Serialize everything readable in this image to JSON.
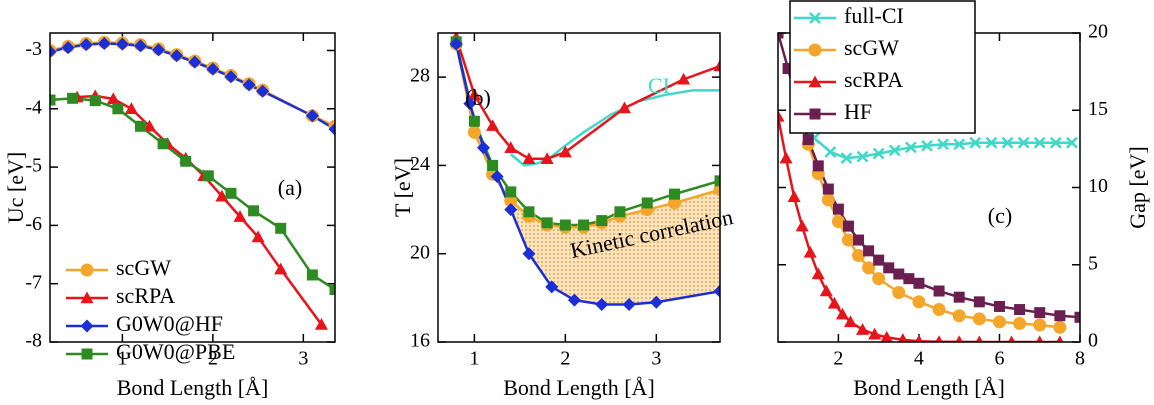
{
  "chart_data": [
    {
      "type": "line",
      "panel_label": "(a)",
      "xlabel": "Bond Length [Å]",
      "ylabel": "Uc [eV]",
      "xlim": [
        0.2,
        3.35
      ],
      "xticks": [
        1,
        2,
        3
      ],
      "ylim": [
        -8,
        -2.7
      ],
      "yticks": [
        -8,
        -7,
        -6,
        -5,
        -4,
        -3
      ],
      "legend": "lower left",
      "legend_frame": false,
      "series": [
        {
          "name": "scGW",
          "color": "#f4a62a",
          "marker": "circle",
          "x": [
            0.2,
            0.4,
            0.6,
            0.8,
            1.0,
            1.2,
            1.4,
            1.6,
            1.8,
            2.0,
            2.2,
            2.4,
            2.55,
            3.1,
            3.35
          ],
          "values": [
            -3.0,
            -2.93,
            -2.88,
            -2.86,
            -2.87,
            -2.9,
            -2.97,
            -3.07,
            -3.18,
            -3.3,
            -3.43,
            -3.57,
            -3.68,
            -4.12,
            -4.3
          ]
        },
        {
          "name": "scRPA",
          "color": "#e8141b",
          "marker": "triangle",
          "x": [
            0.5,
            0.7,
            0.9,
            1.1,
            1.3,
            1.5,
            1.7,
            1.9,
            2.1,
            2.3,
            2.5,
            2.75,
            3.2
          ],
          "values": [
            -3.8,
            -3.78,
            -3.83,
            -4.0,
            -4.3,
            -4.6,
            -4.85,
            -5.15,
            -5.5,
            -5.85,
            -6.2,
            -6.75,
            -7.7
          ]
        },
        {
          "name": "G0W0@HF",
          "color": "#1a2fd8",
          "marker": "diamond",
          "x": [
            0.2,
            0.4,
            0.6,
            0.8,
            1.0,
            1.2,
            1.4,
            1.6,
            1.8,
            2.0,
            2.2,
            2.4,
            2.55,
            3.1,
            3.35
          ],
          "values": [
            -3.02,
            -2.95,
            -2.9,
            -2.88,
            -2.89,
            -2.92,
            -2.99,
            -3.09,
            -3.2,
            -3.32,
            -3.45,
            -3.59,
            -3.7,
            -4.12,
            -4.35
          ]
        },
        {
          "name": "G0W0@PBE",
          "color": "#2e8b22",
          "marker": "square",
          "x": [
            0.2,
            0.45,
            0.7,
            0.95,
            1.2,
            1.45,
            1.7,
            1.95,
            2.2,
            2.45,
            2.75,
            3.1,
            3.35
          ],
          "values": [
            -3.85,
            -3.82,
            -3.86,
            -4.0,
            -4.3,
            -4.6,
            -4.9,
            -5.15,
            -5.45,
            -5.75,
            -6.05,
            -6.85,
            -7.1
          ]
        }
      ]
    },
    {
      "type": "line",
      "panel_label": "(b)",
      "xlabel": "Bond Length [Å]",
      "ylabel": "T [eV]",
      "xlim": [
        0.6,
        3.7
      ],
      "xticks": [
        1,
        2,
        3
      ],
      "ylim": [
        16,
        30
      ],
      "yticks": [
        16,
        20,
        24,
        28
      ],
      "shade_between": [
        2,
        4
      ],
      "shade_color": "#f4b860",
      "shade_label": "Kinetic correlation",
      "series": [
        {
          "name": "CI",
          "color": "#40d8c8",
          "marker": "none",
          "x": [
            1.4,
            1.55,
            1.7,
            1.85,
            2.0,
            2.2,
            2.5,
            2.8,
            3.1,
            3.4,
            3.7
          ],
          "values": [
            24.5,
            24.0,
            24.1,
            24.4,
            24.9,
            25.5,
            26.3,
            26.9,
            27.2,
            27.4,
            27.4
          ]
        },
        {
          "color": "#e8141b",
          "marker": "triangle",
          "x": [
            0.8,
            1.0,
            1.2,
            1.4,
            1.6,
            1.8,
            2.0,
            2.65,
            3.3,
            3.7
          ],
          "values": [
            29.8,
            27.2,
            25.8,
            24.8,
            24.3,
            24.3,
            24.6,
            26.6,
            27.9,
            28.5
          ]
        },
        {
          "color": "#f4a62a",
          "marker": "circle",
          "x": [
            0.8,
            1.0,
            1.2,
            1.4,
            1.6,
            1.8,
            2.0,
            2.2,
            2.4,
            2.6,
            2.9,
            3.2,
            3.7
          ],
          "values": [
            29.5,
            25.5,
            23.6,
            22.4,
            21.7,
            21.3,
            21.2,
            21.2,
            21.4,
            21.7,
            22.0,
            22.3,
            22.9
          ]
        },
        {
          "color": "#2e8b22",
          "marker": "square",
          "x": [
            0.8,
            1.0,
            1.2,
            1.4,
            1.6,
            1.8,
            2.0,
            2.2,
            2.4,
            2.6,
            2.9,
            3.2,
            3.7
          ],
          "values": [
            29.6,
            26.0,
            24.0,
            22.8,
            21.9,
            21.4,
            21.3,
            21.3,
            21.5,
            21.9,
            22.3,
            22.7,
            23.3
          ]
        },
        {
          "color": "#1a2fd8",
          "marker": "diamond",
          "x": [
            0.8,
            0.95,
            1.1,
            1.25,
            1.4,
            1.6,
            1.85,
            2.1,
            2.4,
            2.7,
            3.0,
            3.7
          ],
          "values": [
            29.5,
            26.8,
            24.8,
            23.5,
            22.0,
            20.0,
            18.5,
            17.9,
            17.7,
            17.7,
            17.8,
            18.3
          ]
        }
      ]
    },
    {
      "type": "line",
      "panel_label": "(c)",
      "xlabel": "Bond Length [Å]",
      "y2label": "Gap [eV]",
      "xlim": [
        0.5,
        8
      ],
      "xticks": [
        2,
        4,
        6,
        8
      ],
      "y2lim": [
        0,
        20
      ],
      "y2ticks": [
        0,
        5,
        10,
        15,
        20
      ],
      "legend": "upper left",
      "legend_frame": true,
      "series": [
        {
          "name": "full-CI",
          "color": "#40d8c8",
          "marker": "x",
          "axis": "y2",
          "x": [
            1.0,
            1.4,
            1.8,
            2.2,
            2.6,
            3.0,
            3.4,
            3.8,
            4.2,
            4.6,
            5.0,
            5.4,
            5.8,
            6.2,
            6.6,
            7.0,
            7.4,
            7.8
          ],
          "values": [
            15.2,
            13.2,
            12.3,
            11.9,
            12.0,
            12.2,
            12.4,
            12.6,
            12.7,
            12.8,
            12.8,
            12.9,
            12.9,
            12.9,
            12.9,
            12.9,
            12.9,
            12.9
          ]
        },
        {
          "name": "scGW",
          "color": "#f4a62a",
          "marker": "circle",
          "axis": "y2",
          "x": [
            1.0,
            1.25,
            1.5,
            1.75,
            2.0,
            2.25,
            2.5,
            2.75,
            3.0,
            3.5,
            4.0,
            4.5,
            5.0,
            5.5,
            6.0,
            6.5,
            7.0,
            7.5
          ],
          "values": [
            15.0,
            12.8,
            10.9,
            9.2,
            7.8,
            6.6,
            5.6,
            4.8,
            4.1,
            3.2,
            2.6,
            2.1,
            1.7,
            1.5,
            1.3,
            1.2,
            1.1,
            0.95
          ]
        },
        {
          "name": "scRPA",
          "color": "#e8141b",
          "marker": "triangle",
          "axis": "y2",
          "x": [
            0.5,
            0.7,
            0.9,
            1.1,
            1.3,
            1.5,
            1.7,
            1.9,
            2.1,
            2.3,
            2.6,
            2.9,
            3.2,
            3.6,
            4.0,
            4.5,
            5.0,
            5.5,
            6.3,
            7.0,
            7.5
          ],
          "values": [
            14.6,
            11.9,
            9.4,
            7.5,
            5.8,
            4.4,
            3.3,
            2.5,
            1.8,
            1.3,
            0.8,
            0.5,
            0.3,
            0.15,
            0.05,
            0.02,
            0.01,
            0,
            0,
            0,
            0
          ]
        },
        {
          "name": "HF",
          "color": "#6b1f50",
          "marker": "square",
          "axis": "y2",
          "x": [
            0.5,
            0.75,
            1.0,
            1.25,
            1.5,
            1.75,
            2.0,
            2.25,
            2.5,
            2.75,
            3.0,
            3.25,
            3.5,
            3.75,
            4.0,
            4.5,
            5.0,
            5.5,
            6.0,
            6.5,
            7.0,
            7.5,
            8.0
          ],
          "values": [
            20,
            17.7,
            15.2,
            13.1,
            11.4,
            9.9,
            8.6,
            7.5,
            6.6,
            5.9,
            5.3,
            4.8,
            4.4,
            4.1,
            3.8,
            3.3,
            2.9,
            2.6,
            2.3,
            2.1,
            1.9,
            1.7,
            1.6
          ]
        }
      ]
    }
  ]
}
